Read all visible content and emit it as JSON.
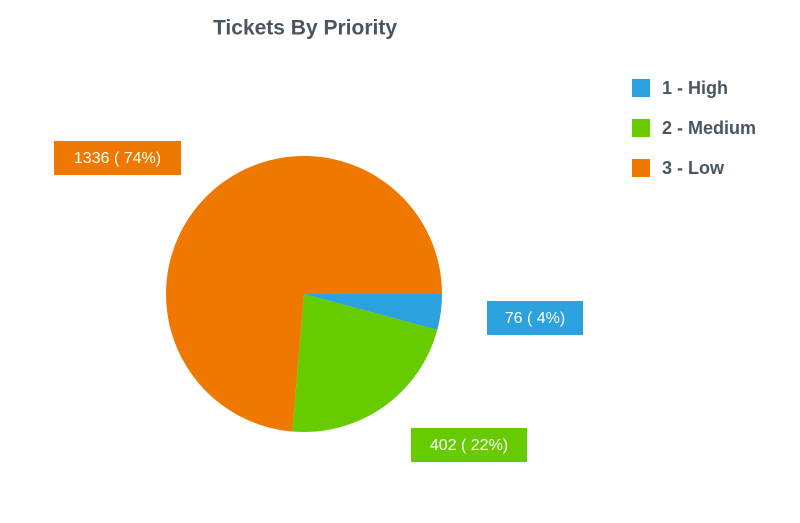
{
  "chart_data": {
    "type": "pie",
    "title": "Tickets By Priority",
    "categories": [
      "1 - High",
      "2 - Medium",
      "3 - Low"
    ],
    "values": [
      76,
      402,
      1336
    ],
    "value_labels": [
      "76 ( 4%)",
      "402 ( 22%)",
      "1336 ( 74%)"
    ],
    "colors": [
      "#2ba1dd",
      "#66cc00",
      "#ef7800"
    ],
    "legend": "top-right"
  }
}
